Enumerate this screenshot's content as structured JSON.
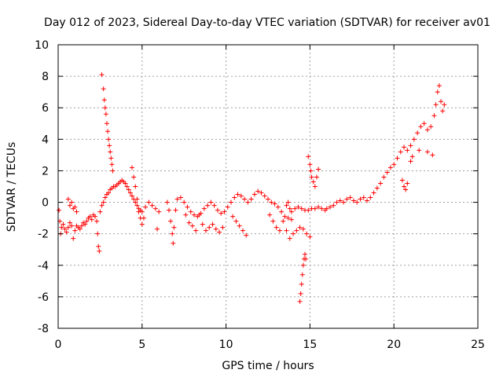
{
  "chart_data": {
    "type": "scatter",
    "title": "Day 012 of 2023, Sidereal Day-to-day VTEC variation (SDTVAR) for receiver av01",
    "xlabel": "GPS time / hours",
    "ylabel": "SDTVAR / TECUs",
    "xlim": [
      0,
      25
    ],
    "ylim": [
      -8,
      10
    ],
    "xticks": [
      0,
      5,
      10,
      15,
      20,
      25
    ],
    "yticks": [
      -8,
      -6,
      -4,
      -2,
      0,
      2,
      4,
      6,
      8,
      10
    ],
    "grid": true,
    "marker": "+",
    "color": "#ff0000",
    "series": [
      {
        "name": "av01",
        "points": [
          [
            0.05,
            -0.5
          ],
          [
            0.1,
            -1.2
          ],
          [
            0.15,
            -2.0
          ],
          [
            0.2,
            -1.6
          ],
          [
            0.3,
            -1.4
          ],
          [
            0.4,
            -1.7
          ],
          [
            0.5,
            -1.9
          ],
          [
            0.6,
            -1.6
          ],
          [
            0.7,
            -1.3
          ],
          [
            0.8,
            -1.5
          ],
          [
            0.9,
            -2.3
          ],
          [
            1.0,
            -1.8
          ],
          [
            1.1,
            -1.5
          ],
          [
            1.2,
            -1.6
          ],
          [
            1.3,
            -1.7
          ],
          [
            1.4,
            -1.5
          ],
          [
            1.5,
            -1.3
          ],
          [
            1.6,
            -1.4
          ],
          [
            1.7,
            -1.2
          ],
          [
            1.8,
            -1.0
          ],
          [
            1.9,
            -0.9
          ],
          [
            2.0,
            -1.1
          ],
          [
            2.1,
            -0.8
          ],
          [
            2.2,
            -0.9
          ],
          [
            2.3,
            -1.2
          ],
          [
            2.35,
            -2.0
          ],
          [
            2.4,
            -2.8
          ],
          [
            2.45,
            -3.1
          ],
          [
            2.5,
            -0.6
          ],
          [
            2.6,
            -0.2
          ],
          [
            2.7,
            0.0
          ],
          [
            2.8,
            0.3
          ],
          [
            2.9,
            0.5
          ],
          [
            3.0,
            0.6
          ],
          [
            3.1,
            0.8
          ],
          [
            3.2,
            0.9
          ],
          [
            3.3,
            1.0
          ],
          [
            3.4,
            1.0
          ],
          [
            3.5,
            1.1
          ],
          [
            3.6,
            1.2
          ],
          [
            3.7,
            1.3
          ],
          [
            3.8,
            1.4
          ],
          [
            3.9,
            1.3
          ],
          [
            4.0,
            1.2
          ],
          [
            4.1,
            1.0
          ],
          [
            4.2,
            0.8
          ],
          [
            4.3,
            0.6
          ],
          [
            4.4,
            0.4
          ],
          [
            4.5,
            0.2
          ],
          [
            4.6,
            0.0
          ],
          [
            4.7,
            -0.2
          ],
          [
            4.8,
            -0.4
          ],
          [
            4.9,
            -0.5
          ],
          [
            5.0,
            -0.6
          ],
          [
            5.2,
            -0.3
          ],
          [
            5.4,
            0.0
          ],
          [
            5.6,
            -0.2
          ],
          [
            5.8,
            -0.4
          ],
          [
            6.0,
            -0.6
          ],
          [
            5.9,
            -1.7
          ],
          [
            0.6,
            0.2
          ],
          [
            0.7,
            -0.2
          ],
          [
            0.8,
            0.0
          ],
          [
            0.9,
            -0.4
          ],
          [
            1.0,
            -0.3
          ],
          [
            1.1,
            -0.6
          ],
          [
            2.6,
            8.1
          ],
          [
            2.7,
            7.2
          ],
          [
            2.75,
            6.5
          ],
          [
            2.8,
            6.0
          ],
          [
            2.85,
            5.6
          ],
          [
            2.9,
            5.0
          ],
          [
            2.95,
            4.5
          ],
          [
            3.0,
            4.0
          ],
          [
            3.05,
            3.6
          ],
          [
            3.1,
            3.2
          ],
          [
            3.15,
            2.8
          ],
          [
            3.2,
            2.4
          ],
          [
            3.25,
            2.0
          ],
          [
            4.4,
            2.2
          ],
          [
            4.5,
            1.6
          ],
          [
            4.6,
            1.0
          ],
          [
            4.7,
            0.2
          ],
          [
            4.8,
            -0.6
          ],
          [
            4.9,
            -1.0
          ],
          [
            5.0,
            -1.4
          ],
          [
            5.1,
            -1.0
          ],
          [
            6.5,
            0.0
          ],
          [
            6.6,
            -0.5
          ],
          [
            6.7,
            -1.2
          ],
          [
            6.8,
            -2.0
          ],
          [
            6.85,
            -2.6
          ],
          [
            6.9,
            -1.6
          ],
          [
            7.0,
            -0.5
          ],
          [
            7.1,
            0.2
          ],
          [
            7.3,
            0.3
          ],
          [
            7.5,
            0.0
          ],
          [
            7.7,
            -0.3
          ],
          [
            7.9,
            -0.6
          ],
          [
            8.1,
            -0.8
          ],
          [
            8.3,
            -0.9
          ],
          [
            8.5,
            -0.7
          ],
          [
            8.7,
            -0.4
          ],
          [
            8.9,
            -0.2
          ],
          [
            9.1,
            0.0
          ],
          [
            9.3,
            -0.2
          ],
          [
            9.5,
            -0.5
          ],
          [
            9.7,
            -0.7
          ],
          [
            9.9,
            -0.6
          ],
          [
            10.1,
            -0.3
          ],
          [
            10.3,
            0.0
          ],
          [
            10.5,
            0.3
          ],
          [
            10.7,
            0.5
          ],
          [
            10.9,
            0.4
          ],
          [
            11.1,
            0.2
          ],
          [
            11.3,
            0.0
          ],
          [
            11.5,
            0.2
          ],
          [
            11.7,
            0.5
          ],
          [
            11.9,
            0.7
          ],
          [
            12.1,
            0.6
          ],
          [
            12.3,
            0.4
          ],
          [
            12.5,
            0.2
          ],
          [
            12.7,
            0.0
          ],
          [
            12.9,
            -0.1
          ],
          [
            13.1,
            -0.3
          ],
          [
            13.3,
            -0.6
          ],
          [
            13.5,
            -0.9
          ],
          [
            13.7,
            -1.0
          ],
          [
            13.9,
            -0.6
          ],
          [
            14.1,
            -0.4
          ],
          [
            14.3,
            -0.3
          ],
          [
            14.5,
            -0.4
          ],
          [
            14.7,
            -0.5
          ],
          [
            14.9,
            -0.5
          ],
          [
            15.1,
            -0.4
          ],
          [
            15.3,
            -0.4
          ],
          [
            15.5,
            -0.3
          ],
          [
            15.7,
            -0.4
          ],
          [
            15.9,
            -0.5
          ],
          [
            8.4,
            -0.8
          ],
          [
            8.6,
            -1.4
          ],
          [
            8.8,
            -1.8
          ],
          [
            9.0,
            -1.6
          ],
          [
            9.2,
            -1.4
          ],
          [
            9.4,
            -1.7
          ],
          [
            9.6,
            -1.9
          ],
          [
            9.8,
            -1.6
          ],
          [
            7.6,
            -0.8
          ],
          [
            7.8,
            -1.3
          ],
          [
            8.0,
            -1.5
          ],
          [
            8.2,
            -1.8
          ],
          [
            10.4,
            -0.9
          ],
          [
            10.6,
            -1.2
          ],
          [
            10.8,
            -1.5
          ],
          [
            11.0,
            -1.8
          ],
          [
            11.2,
            -2.1
          ],
          [
            12.6,
            -0.8
          ],
          [
            12.8,
            -1.2
          ],
          [
            13.0,
            -1.6
          ],
          [
            13.2,
            -1.8
          ],
          [
            13.4,
            -1.2
          ],
          [
            13.6,
            -1.8
          ],
          [
            13.8,
            -2.3
          ],
          [
            14.0,
            -2.0
          ],
          [
            14.2,
            -1.8
          ],
          [
            14.4,
            -1.6
          ],
          [
            14.6,
            -1.7
          ],
          [
            14.8,
            -2.0
          ],
          [
            15.0,
            -2.2
          ],
          [
            13.6,
            -0.2
          ],
          [
            13.7,
            0.0
          ],
          [
            13.8,
            -0.4
          ],
          [
            13.9,
            -1.1
          ],
          [
            14.4,
            -6.3
          ],
          [
            14.45,
            -5.8
          ],
          [
            14.5,
            -5.2
          ],
          [
            14.55,
            -4.6
          ],
          [
            14.6,
            -4.0
          ],
          [
            14.65,
            -3.6
          ],
          [
            14.7,
            -3.3
          ],
          [
            14.75,
            -3.6
          ],
          [
            14.9,
            2.9
          ],
          [
            15.0,
            2.4
          ],
          [
            15.05,
            2.0
          ],
          [
            15.1,
            1.6
          ],
          [
            15.2,
            1.3
          ],
          [
            15.3,
            1.0
          ],
          [
            15.4,
            1.6
          ],
          [
            15.5,
            2.1
          ],
          [
            16.0,
            -0.4
          ],
          [
            16.2,
            -0.3
          ],
          [
            16.4,
            -0.2
          ],
          [
            16.6,
            0.0
          ],
          [
            16.8,
            0.1
          ],
          [
            17.0,
            0.0
          ],
          [
            17.2,
            0.2
          ],
          [
            17.4,
            0.3
          ],
          [
            17.6,
            0.1
          ],
          [
            17.8,
            0.0
          ],
          [
            18.0,
            0.2
          ],
          [
            18.2,
            0.3
          ],
          [
            18.4,
            0.1
          ],
          [
            18.6,
            0.3
          ],
          [
            18.8,
            0.6
          ],
          [
            19.0,
            0.9
          ],
          [
            19.2,
            1.2
          ],
          [
            19.4,
            1.6
          ],
          [
            19.6,
            1.9
          ],
          [
            19.8,
            2.2
          ],
          [
            20.0,
            2.4
          ],
          [
            20.2,
            2.8
          ],
          [
            20.4,
            3.2
          ],
          [
            20.6,
            3.5
          ],
          [
            20.8,
            3.3
          ],
          [
            21.0,
            3.6
          ],
          [
            21.2,
            4.0
          ],
          [
            21.4,
            4.4
          ],
          [
            21.6,
            4.8
          ],
          [
            21.8,
            5.0
          ],
          [
            22.0,
            4.6
          ],
          [
            22.2,
            4.8
          ],
          [
            22.4,
            5.5
          ],
          [
            22.5,
            6.2
          ],
          [
            22.6,
            7.0
          ],
          [
            22.7,
            7.4
          ],
          [
            22.8,
            6.4
          ],
          [
            22.9,
            5.8
          ],
          [
            23.0,
            6.2
          ],
          [
            20.5,
            1.4
          ],
          [
            20.6,
            1.0
          ],
          [
            20.7,
            0.8
          ],
          [
            20.8,
            1.2
          ],
          [
            21.0,
            2.6
          ],
          [
            21.1,
            2.9
          ],
          [
            21.5,
            3.3
          ],
          [
            22.0,
            3.2
          ],
          [
            22.3,
            3.0
          ]
        ]
      }
    ]
  }
}
